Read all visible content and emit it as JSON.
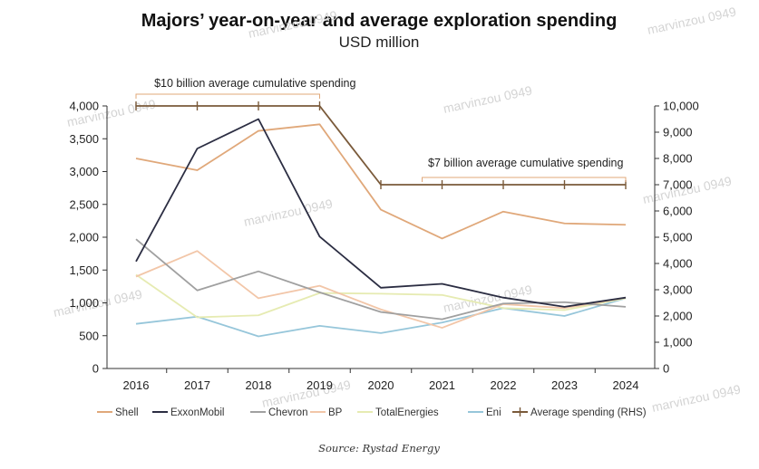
{
  "chart_data": {
    "type": "line",
    "title": "Majors’ year-on-year and average exploration spending",
    "subtitle": "USD million",
    "categories": [
      "2016",
      "2017",
      "2018",
      "2019",
      "2020",
      "2021",
      "2022",
      "2023",
      "2024"
    ],
    "ylim": [
      0,
      4000
    ],
    "yticks": [
      0,
      500,
      1000,
      1500,
      2000,
      2500,
      3000,
      3500,
      4000
    ],
    "ytick_labels": [
      "0",
      "500",
      "1,000",
      "1,500",
      "2,000",
      "2,500",
      "3,000",
      "3,500",
      "4,000"
    ],
    "y2lim": [
      0,
      10000
    ],
    "y2ticks": [
      0,
      1000,
      2000,
      3000,
      4000,
      5000,
      6000,
      7000,
      8000,
      9000,
      10000
    ],
    "y2tick_labels": [
      "0",
      "1,000",
      "2,000",
      "3,000",
      "4,000",
      "5,000",
      "6,000",
      "7,000",
      "8,000",
      "9,000",
      "10,000"
    ],
    "series": [
      {
        "name": "Shell",
        "color": "#e0a87a",
        "axis": "left",
        "values": [
          3200,
          3020,
          3620,
          3720,
          2420,
          1980,
          2390,
          2210,
          2190
        ]
      },
      {
        "name": "ExxonMobil",
        "color": "#2b2d42",
        "axis": "left",
        "values": [
          1630,
          3350,
          3800,
          2010,
          1230,
          1290,
          1080,
          940,
          1080
        ]
      },
      {
        "name": "Chevron",
        "color": "#a0a0a0",
        "axis": "left",
        "values": [
          1970,
          1190,
          1480,
          1160,
          860,
          750,
          990,
          1010,
          940
        ]
      },
      {
        "name": "BP",
        "color": "#f2c6a8",
        "axis": "left",
        "values": [
          1400,
          1790,
          1070,
          1260,
          900,
          620,
          980,
          920,
          1080
        ]
      },
      {
        "name": "TotalEnergies",
        "color": "#e6ebb2",
        "axis": "left",
        "values": [
          1430,
          780,
          810,
          1150,
          1140,
          1120,
          920,
          890,
          1070
        ]
      },
      {
        "name": "Eni",
        "color": "#96c6da",
        "axis": "left",
        "values": [
          680,
          790,
          490,
          650,
          540,
          700,
          920,
          800,
          1070
        ]
      },
      {
        "name": "Average spending (RHS)",
        "color": "#7a5a3a",
        "axis": "right",
        "values": [
          10000,
          10000,
          10000,
          10000,
          7000,
          7000,
          7000,
          7000,
          7000
        ]
      }
    ],
    "annotations": [
      "$10 billion average cumulative spending",
      "$7 billion average cumulative spending"
    ],
    "legend_position": "bottom",
    "source": "Source: Rystad Energy"
  },
  "watermarks": [
    "marvinzou 0949"
  ]
}
